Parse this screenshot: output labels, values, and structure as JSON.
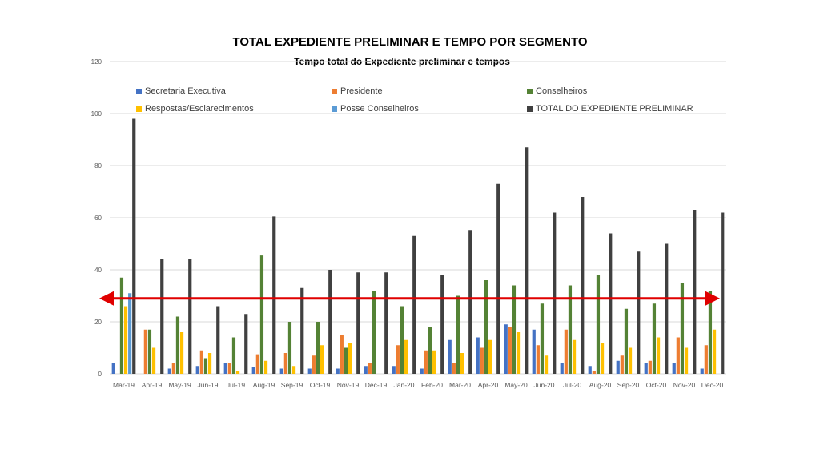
{
  "chart_data": {
    "type": "bar",
    "title": "TOTAL EXPEDIENTE PRELIMINAR E TEMPO POR SEGMENTO",
    "subtitle": "Tempo total do Expediente preliminar e tempos",
    "xlabel": "",
    "ylabel": "",
    "ylim": [
      0,
      120
    ],
    "yticks": [
      0,
      20,
      40,
      60,
      80,
      100,
      120
    ],
    "grid": true,
    "legend_position": "top",
    "categories": [
      "Mar-19",
      "Apr-19",
      "May-19",
      "Jun-19",
      "Jul-19",
      "Aug-19",
      "Sep-19",
      "Oct-19",
      "Nov-19",
      "Dec-19",
      "Jan-20",
      "Feb-20",
      "Mar-20",
      "Apr-20",
      "May-20",
      "Jun-20",
      "Jul-20",
      "Aug-20",
      "Sep-20",
      "Oct-20",
      "Nov-20",
      "Dec-20"
    ],
    "series": [
      {
        "name": "Secretaria Executiva",
        "color": "#4472c4",
        "values": [
          4,
          0,
          2,
          3,
          4,
          2.5,
          2,
          2,
          2,
          3,
          3,
          2,
          13,
          14,
          19,
          17,
          4,
          3,
          5,
          4,
          4,
          2
        ]
      },
      {
        "name": "Presidente",
        "color": "#ed7d31",
        "values": [
          0,
          17,
          4,
          9,
          4,
          7.5,
          8,
          7,
          15,
          4,
          11,
          9,
          4,
          10,
          18,
          11,
          17,
          1,
          7,
          5,
          14,
          11
        ]
      },
      {
        "name": "Conselheiros",
        "color": "#548235",
        "values": [
          37,
          17,
          22,
          6,
          14,
          45.5,
          20,
          20,
          10,
          32,
          26,
          18,
          30,
          36,
          34,
          27,
          34,
          38,
          25,
          27,
          35,
          32
        ]
      },
      {
        "name": "Respostas/Esclarecimentos",
        "color": "#ffc000",
        "values": [
          26,
          10,
          16,
          8,
          1,
          5,
          3,
          11,
          12,
          0,
          13,
          9,
          8,
          13,
          16,
          7,
          13,
          12,
          10,
          14,
          10,
          17
        ]
      },
      {
        "name": "Posse Conselheiros",
        "color": "#5b9bd5",
        "values": [
          31,
          0,
          0,
          0,
          0,
          0,
          0,
          0,
          0,
          0,
          0,
          0,
          0,
          0,
          0,
          0,
          0,
          0,
          0,
          0,
          0,
          0
        ]
      },
      {
        "name": "TOTAL DO EXPEDIENTE PRELIMINAR",
        "color": "#404040",
        "values": [
          98,
          44,
          44,
          26,
          23,
          60.5,
          33,
          40,
          39,
          39,
          53,
          38,
          55,
          73,
          87,
          62,
          68,
          54,
          47,
          50,
          63,
          62
        ]
      }
    ],
    "reference_line": {
      "value": 29,
      "color": "#e00000"
    }
  }
}
